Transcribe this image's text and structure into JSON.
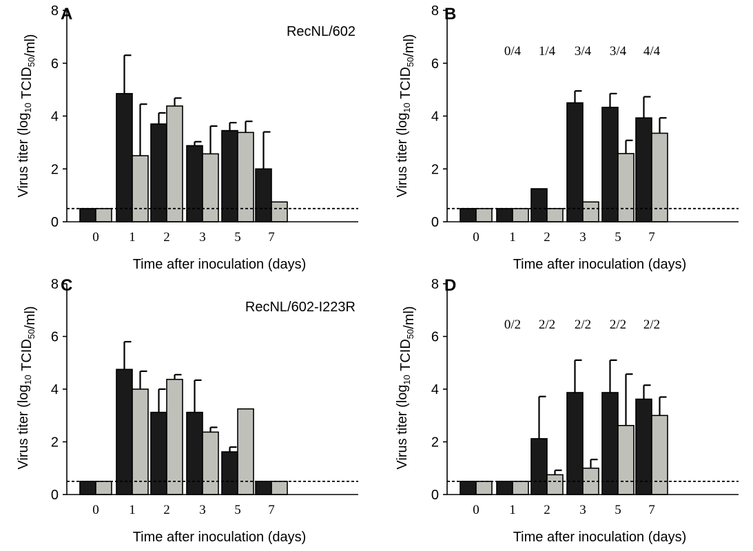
{
  "figure": {
    "ylabel_prefix": "Virus titer (log",
    "ylabel_sub1": "10",
    "ylabel_mid": " TCID",
    "ylabel_sub2": "50",
    "ylabel_suffix": "/ml)",
    "xlabel": "Time after inoculation (days)"
  },
  "colors": {
    "series_dark": "#1a1a1a",
    "series_light": "#c0c0ba",
    "outline": "#000000"
  },
  "chart_data": [
    {
      "type": "bar",
      "panel": "A",
      "strain_label": "RecNL/602",
      "categories": [
        "0",
        "1",
        "2",
        "3",
        "5",
        "7"
      ],
      "ylim": [
        0,
        8
      ],
      "yticks": [
        0,
        2,
        4,
        6,
        8
      ],
      "detection_limit": 0.5,
      "series": [
        {
          "values": [
            0.5,
            4.85,
            3.7,
            2.88,
            3.45,
            2.0
          ],
          "errors": [
            0,
            1.45,
            0.42,
            0.15,
            0.3,
            1.4
          ]
        },
        {
          "values": [
            0.5,
            2.5,
            4.38,
            2.57,
            3.38,
            0.75
          ],
          "errors": [
            0,
            1.95,
            0.3,
            1.05,
            0.42,
            0
          ]
        }
      ],
      "fractions": []
    },
    {
      "type": "bar",
      "panel": "B",
      "strain_label": "",
      "categories": [
        "0",
        "1",
        "2",
        "3",
        "5",
        "7"
      ],
      "ylim": [
        0,
        8
      ],
      "yticks": [
        0,
        2,
        4,
        6,
        8
      ],
      "detection_limit": 0.5,
      "series": [
        {
          "values": [
            0.5,
            0.5,
            1.25,
            4.5,
            4.33,
            3.93
          ],
          "errors": [
            0,
            0,
            0,
            0.45,
            0.52,
            0.8
          ]
        },
        {
          "values": [
            0.5,
            0.5,
            0.5,
            0.75,
            2.58,
            3.35
          ],
          "errors": [
            0,
            0,
            0,
            0,
            0.5,
            0.58
          ]
        }
      ],
      "fractions": [
        "0/4",
        "1/4",
        "3/4",
        "3/4",
        "4/4"
      ]
    },
    {
      "type": "bar",
      "panel": "C",
      "strain_label": "RecNL/602-I223R",
      "categories": [
        "0",
        "1",
        "2",
        "3",
        "5",
        "7"
      ],
      "ylim": [
        0,
        8
      ],
      "yticks": [
        0,
        2,
        4,
        6,
        8
      ],
      "detection_limit": 0.5,
      "series": [
        {
          "values": [
            0.5,
            4.75,
            3.12,
            3.12,
            1.62,
            0.5
          ],
          "errors": [
            0,
            1.05,
            0.88,
            1.22,
            0.18,
            0
          ]
        },
        {
          "values": [
            0.5,
            4.0,
            4.37,
            2.37,
            3.25,
            0.5
          ],
          "errors": [
            0,
            0.68,
            0.18,
            0.18,
            0,
            0
          ]
        }
      ],
      "fractions": []
    },
    {
      "type": "bar",
      "panel": "D",
      "strain_label": "",
      "categories": [
        "0",
        "1",
        "2",
        "3",
        "5",
        "7"
      ],
      "ylim": [
        0,
        8
      ],
      "yticks": [
        0,
        2,
        4,
        6,
        8
      ],
      "detection_limit": 0.5,
      "series": [
        {
          "values": [
            0.5,
            0.5,
            2.12,
            3.87,
            3.87,
            3.62
          ],
          "errors": [
            0,
            0,
            1.6,
            1.23,
            1.23,
            0.53
          ]
        },
        {
          "values": [
            0.5,
            0.5,
            0.75,
            1.0,
            2.62,
            3.0
          ],
          "errors": [
            0,
            0,
            0.17,
            0.33,
            1.95,
            0.7
          ]
        }
      ],
      "fractions": [
        "0/2",
        "2/2",
        "2/2",
        "2/2",
        "2/2"
      ]
    }
  ]
}
